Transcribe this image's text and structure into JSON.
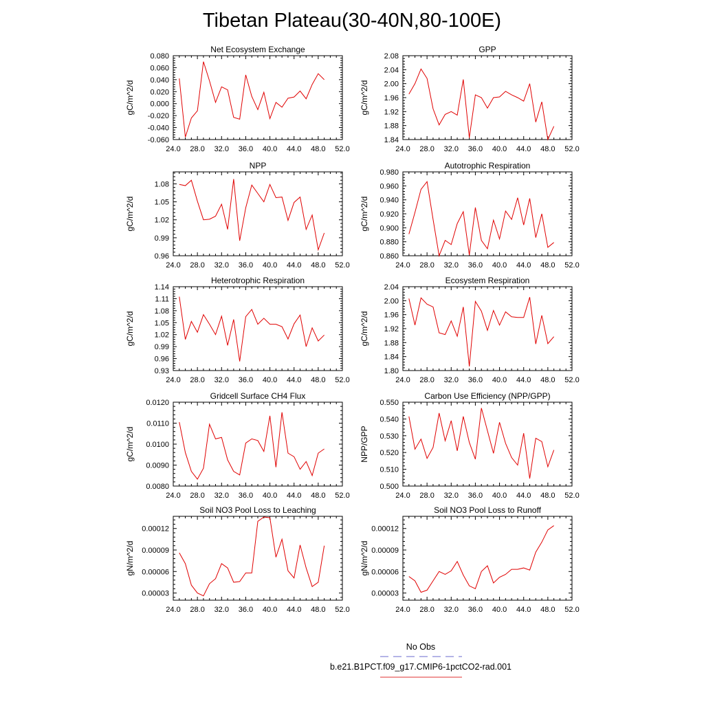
{
  "title": "Tibetan Plateau(30-40N,80-100E)",
  "legend": {
    "entries": [
      {
        "label": "No Obs",
        "color": "#6a6acd",
        "dash": "dashed"
      },
      {
        "label": "b.e21.B1PCT.f09_g17.CMIP6-1pctCO2-rad.001",
        "color": "#e03030",
        "dash": "solid"
      }
    ]
  },
  "chart_data": [
    {
      "type": "line",
      "title": "Net Ecosystem Exchange",
      "ylabel": "gC/m^2/d",
      "xlim": [
        24,
        52
      ],
      "ylim": [
        -0.06,
        0.08
      ],
      "xticks": [
        24,
        28,
        32,
        36,
        40,
        44,
        48,
        52
      ],
      "xtick_labels": [
        "24.0",
        "28.0",
        "32.0",
        "36.0",
        "40.0",
        "44.0",
        "48.0",
        "52.0"
      ],
      "yticks": [
        -0.06,
        -0.04,
        -0.02,
        0.0,
        0.02,
        0.04,
        0.06,
        0.08
      ],
      "ytick_labels": [
        "-0.060",
        "-0.040",
        "-0.020",
        "0.000",
        "0.020",
        "0.040",
        "0.060",
        "0.080"
      ],
      "series": [
        {
          "color": "#e00000",
          "x": [
            25,
            26,
            27,
            28,
            29,
            30,
            31,
            32,
            33,
            34,
            35,
            36,
            37,
            38,
            39,
            40,
            41,
            42,
            43,
            44,
            45,
            46,
            47,
            48,
            49
          ],
          "y": [
            0.042,
            -0.056,
            -0.024,
            -0.012,
            0.07,
            0.038,
            0.002,
            0.028,
            0.023,
            -0.023,
            -0.026,
            0.048,
            0.012,
            -0.01,
            0.019,
            -0.025,
            0.002,
            -0.006,
            0.009,
            0.011,
            0.021,
            0.008,
            0.032,
            0.05,
            0.04
          ]
        }
      ]
    },
    {
      "type": "line",
      "title": "GPP",
      "ylabel": "gC/m^2/d",
      "xlim": [
        24,
        52
      ],
      "ylim": [
        1.84,
        2.08
      ],
      "xticks": [
        24,
        28,
        32,
        36,
        40,
        44,
        48,
        52
      ],
      "xtick_labels": [
        "24.0",
        "28.0",
        "32.0",
        "36.0",
        "40.0",
        "44.0",
        "48.0",
        "52.0"
      ],
      "yticks": [
        1.84,
        1.88,
        1.92,
        1.96,
        2.0,
        2.04,
        2.08
      ],
      "ytick_labels": [
        "1.84",
        "1.88",
        "1.92",
        "1.96",
        "2.00",
        "2.04",
        "2.08"
      ],
      "series": [
        {
          "color": "#e00000",
          "x": [
            25,
            26,
            27,
            28,
            29,
            30,
            31,
            32,
            33,
            34,
            35,
            36,
            37,
            38,
            39,
            40,
            41,
            42,
            43,
            44,
            45,
            46,
            47,
            48,
            49
          ],
          "y": [
            1.97,
            2.0,
            2.042,
            2.015,
            1.928,
            1.882,
            1.912,
            1.92,
            1.91,
            2.012,
            1.845,
            1.968,
            1.96,
            1.93,
            1.96,
            1.962,
            1.978,
            1.968,
            1.96,
            1.95,
            2.0,
            1.89,
            1.948,
            1.84,
            1.878
          ]
        }
      ]
    },
    {
      "type": "line",
      "title": "NPP",
      "ylabel": "gC/m^2/d",
      "xlim": [
        24,
        52
      ],
      "ylim": [
        0.96,
        1.1
      ],
      "xticks": [
        24,
        28,
        32,
        36,
        40,
        44,
        48,
        52
      ],
      "xtick_labels": [
        "24.0",
        "28.0",
        "32.0",
        "36.0",
        "40.0",
        "44.0",
        "48.0",
        "52.0"
      ],
      "yticks": [
        0.96,
        0.99,
        1.02,
        1.05,
        1.08
      ],
      "ytick_labels": [
        "0.96",
        "0.99",
        "1.02",
        "1.05",
        "1.08"
      ],
      "series": [
        {
          "color": "#e00000",
          "x": [
            25,
            26,
            27,
            28,
            29,
            30,
            31,
            32,
            33,
            34,
            35,
            36,
            37,
            38,
            39,
            40,
            41,
            42,
            43,
            44,
            45,
            46,
            47,
            48,
            49
          ],
          "y": [
            1.079,
            1.077,
            1.086,
            1.051,
            1.02,
            1.021,
            1.026,
            1.046,
            1.004,
            1.088,
            0.985,
            1.04,
            1.078,
            1.064,
            1.05,
            1.079,
            1.057,
            1.058,
            1.019,
            1.049,
            1.058,
            1.004,
            1.028,
            0.97,
            0.998
          ]
        }
      ]
    },
    {
      "type": "line",
      "title": "Autotrophic Respiration",
      "ylabel": "gC/m^2/d",
      "xlim": [
        24,
        52
      ],
      "ylim": [
        0.86,
        0.98
      ],
      "xticks": [
        24,
        28,
        32,
        36,
        40,
        44,
        48,
        52
      ],
      "xtick_labels": [
        "24.0",
        "28.0",
        "32.0",
        "36.0",
        "40.0",
        "44.0",
        "48.0",
        "52.0"
      ],
      "yticks": [
        0.86,
        0.88,
        0.9,
        0.92,
        0.94,
        0.96,
        0.98
      ],
      "ytick_labels": [
        "0.860",
        "0.880",
        "0.900",
        "0.920",
        "0.940",
        "0.960",
        "0.980"
      ],
      "series": [
        {
          "color": "#e00000",
          "x": [
            25,
            26,
            27,
            28,
            29,
            30,
            31,
            32,
            33,
            34,
            35,
            36,
            37,
            38,
            39,
            40,
            41,
            42,
            43,
            44,
            45,
            46,
            47,
            48,
            49
          ],
          "y": [
            0.891,
            0.922,
            0.955,
            0.966,
            0.912,
            0.86,
            0.882,
            0.876,
            0.906,
            0.923,
            0.861,
            0.929,
            0.882,
            0.87,
            0.911,
            0.884,
            0.924,
            0.912,
            0.943,
            0.904,
            0.942,
            0.886,
            0.92,
            0.872,
            0.879
          ]
        }
      ]
    },
    {
      "type": "line",
      "title": "Heterotrophic Respiration",
      "ylabel": "gC/m^2/d",
      "xlim": [
        24,
        52
      ],
      "ylim": [
        0.93,
        1.14
      ],
      "xticks": [
        24,
        28,
        32,
        36,
        40,
        44,
        48,
        52
      ],
      "xtick_labels": [
        "24.0",
        "28.0",
        "32.0",
        "36.0",
        "40.0",
        "44.0",
        "48.0",
        "52.0"
      ],
      "yticks": [
        0.93,
        0.96,
        0.99,
        1.02,
        1.05,
        1.08,
        1.11,
        1.14
      ],
      "ytick_labels": [
        "0.93",
        "0.96",
        "0.99",
        "1.02",
        "1.05",
        "1.08",
        "1.11",
        "1.14"
      ],
      "series": [
        {
          "color": "#e00000",
          "x": [
            25,
            26,
            27,
            28,
            29,
            30,
            31,
            32,
            33,
            34,
            35,
            36,
            37,
            38,
            39,
            40,
            41,
            42,
            43,
            44,
            45,
            46,
            47,
            48,
            49
          ],
          "y": [
            1.115,
            1.008,
            1.053,
            1.026,
            1.07,
            1.046,
            1.02,
            1.066,
            0.993,
            1.058,
            0.953,
            1.065,
            1.083,
            1.046,
            1.061,
            1.046,
            1.046,
            1.04,
            1.009,
            1.047,
            1.069,
            0.99,
            1.037,
            1.004,
            1.019
          ]
        }
      ]
    },
    {
      "type": "line",
      "title": "Ecosystem Respiration",
      "ylabel": "gC/m^2/d",
      "xlim": [
        24,
        52
      ],
      "ylim": [
        1.8,
        2.04
      ],
      "xticks": [
        24,
        28,
        32,
        36,
        40,
        44,
        48,
        52
      ],
      "xtick_labels": [
        "24.0",
        "28.0",
        "32.0",
        "36.0",
        "40.0",
        "44.0",
        "48.0",
        "52.0"
      ],
      "yticks": [
        1.8,
        1.84,
        1.88,
        1.92,
        1.96,
        2.0,
        2.04
      ],
      "ytick_labels": [
        "1.80",
        "1.84",
        "1.88",
        "1.92",
        "1.96",
        "2.00",
        "2.04"
      ],
      "series": [
        {
          "color": "#e00000",
          "x": [
            25,
            26,
            27,
            28,
            29,
            30,
            31,
            32,
            33,
            34,
            35,
            36,
            37,
            38,
            39,
            40,
            41,
            42,
            43,
            44,
            45,
            46,
            47,
            48,
            49
          ],
          "y": [
            2.006,
            1.93,
            2.008,
            1.99,
            1.982,
            1.908,
            1.903,
            1.942,
            1.898,
            1.982,
            1.812,
            1.998,
            1.97,
            1.915,
            1.972,
            1.93,
            1.968,
            1.954,
            1.952,
            1.952,
            2.01,
            1.876,
            1.958,
            1.877,
            1.897
          ]
        }
      ]
    },
    {
      "type": "line",
      "title": "Gridcell Surface CH4 Flux",
      "ylabel": "gC/m^2/d",
      "xlim": [
        24,
        52
      ],
      "ylim": [
        0.008,
        0.012
      ],
      "xticks": [
        24,
        28,
        32,
        36,
        40,
        44,
        48,
        52
      ],
      "xtick_labels": [
        "24.0",
        "28.0",
        "32.0",
        "36.0",
        "40.0",
        "44.0",
        "48.0",
        "52.0"
      ],
      "yticks": [
        0.008,
        0.009,
        0.01,
        0.011,
        0.012
      ],
      "ytick_labels": [
        "0.0080",
        "0.0090",
        "0.0100",
        "0.0110",
        "0.0120"
      ],
      "series": [
        {
          "color": "#e00000",
          "x": [
            25,
            26,
            27,
            28,
            29,
            30,
            31,
            32,
            33,
            34,
            35,
            36,
            37,
            38,
            39,
            40,
            41,
            42,
            43,
            44,
            45,
            46,
            47,
            48,
            49
          ],
          "y": [
            0.01105,
            0.0096,
            0.0087,
            0.00833,
            0.00885,
            0.01095,
            0.01025,
            0.01032,
            0.00925,
            0.0087,
            0.00853,
            0.01005,
            0.01025,
            0.01017,
            0.00965,
            0.01135,
            0.0089,
            0.01152,
            0.00957,
            0.0094,
            0.0088,
            0.00917,
            0.0085,
            0.00957,
            0.00977
          ]
        }
      ]
    },
    {
      "type": "line",
      "title": "Carbon Use Efficiency (NPP/GPP)",
      "ylabel": "NPP/GPP",
      "xlim": [
        24,
        52
      ],
      "ylim": [
        0.5,
        0.55
      ],
      "xticks": [
        24,
        28,
        32,
        36,
        40,
        44,
        48,
        52
      ],
      "xtick_labels": [
        "24.0",
        "28.0",
        "32.0",
        "36.0",
        "40.0",
        "44.0",
        "48.0",
        "52.0"
      ],
      "yticks": [
        0.5,
        0.51,
        0.52,
        0.53,
        0.54,
        0.55
      ],
      "ytick_labels": [
        "0.500",
        "0.510",
        "0.520",
        "0.530",
        "0.540",
        "0.550"
      ],
      "series": [
        {
          "color": "#e00000",
          "x": [
            25,
            26,
            27,
            28,
            29,
            30,
            31,
            32,
            33,
            34,
            35,
            36,
            37,
            38,
            39,
            40,
            41,
            42,
            43,
            44,
            45,
            46,
            47,
            48,
            49
          ],
          "y": [
            0.5415,
            0.522,
            0.528,
            0.5165,
            0.523,
            0.5435,
            0.527,
            0.539,
            0.521,
            0.5415,
            0.526,
            0.516,
            0.5465,
            0.533,
            0.5195,
            0.538,
            0.5255,
            0.517,
            0.5125,
            0.5315,
            0.5045,
            0.5285,
            0.5265,
            0.5115,
            0.5215
          ]
        }
      ]
    },
    {
      "type": "line",
      "title": "Soil NO3 Pool Loss to Leaching",
      "ylabel": "gN/m^2/d",
      "xlim": [
        24,
        52
      ],
      "ylim": [
        2e-05,
        0.000137
      ],
      "xticks": [
        24,
        28,
        32,
        36,
        40,
        44,
        48,
        52
      ],
      "xtick_labels": [
        "24.0",
        "28.0",
        "32.0",
        "36.0",
        "40.0",
        "44.0",
        "48.0",
        "52.0"
      ],
      "yticks": [
        3e-05,
        6e-05,
        9e-05,
        0.00012
      ],
      "ytick_labels": [
        "0.00003",
        "0.00006",
        "0.00009",
        "0.00012"
      ],
      "series": [
        {
          "color": "#e00000",
          "x": [
            25,
            26,
            27,
            28,
            29,
            30,
            31,
            32,
            33,
            34,
            35,
            36,
            37,
            38,
            39,
            40,
            41,
            42,
            43,
            44,
            45,
            46,
            47,
            48,
            49
          ],
          "y": [
            8.6e-05,
            7.1e-05,
            4.1e-05,
            3e-05,
            2.6e-05,
            4.3e-05,
            5e-05,
            7.1e-05,
            6.5e-05,
            4.5e-05,
            4.6e-05,
            5.8e-05,
            5.8e-05,
            0.00013,
            0.000136,
            0.000135,
            8e-05,
            0.000105,
            6.1e-05,
            5.1e-05,
            9.7e-05,
            6.5e-05,
            3.9e-05,
            4.5e-05,
            9.6e-05
          ]
        }
      ]
    },
    {
      "type": "line",
      "title": "Soil NO3 Pool Loss to Runoff",
      "ylabel": "gN/m^2/d",
      "xlim": [
        24,
        52
      ],
      "ylim": [
        2e-05,
        0.000137
      ],
      "xticks": [
        24,
        28,
        32,
        36,
        40,
        44,
        48,
        52
      ],
      "xtick_labels": [
        "24.0",
        "28.0",
        "32.0",
        "36.0",
        "40.0",
        "44.0",
        "48.0",
        "52.0"
      ],
      "yticks": [
        3e-05,
        6e-05,
        9e-05,
        0.00012
      ],
      "ytick_labels": [
        "0.00003",
        "0.00006",
        "0.00009",
        "0.00012"
      ],
      "series": [
        {
          "color": "#e00000",
          "x": [
            25,
            26,
            27,
            28,
            29,
            30,
            31,
            32,
            33,
            34,
            35,
            36,
            37,
            38,
            39,
            40,
            41,
            42,
            43,
            44,
            45,
            46,
            47,
            48,
            49
          ],
          "y": [
            5.3e-05,
            4.7e-05,
            3.1e-05,
            3.4e-05,
            4.7e-05,
            6e-05,
            5.6e-05,
            6.1e-05,
            7.4e-05,
            5.5e-05,
            4e-05,
            3.6e-05,
            6e-05,
            6.8e-05,
            4.4e-05,
            5.2e-05,
            5.6e-05,
            6.3e-05,
            6.3e-05,
            6.5e-05,
            6.2e-05,
            8.7e-05,
            0.000101,
            0.000118,
            0.000124
          ]
        }
      ]
    }
  ]
}
